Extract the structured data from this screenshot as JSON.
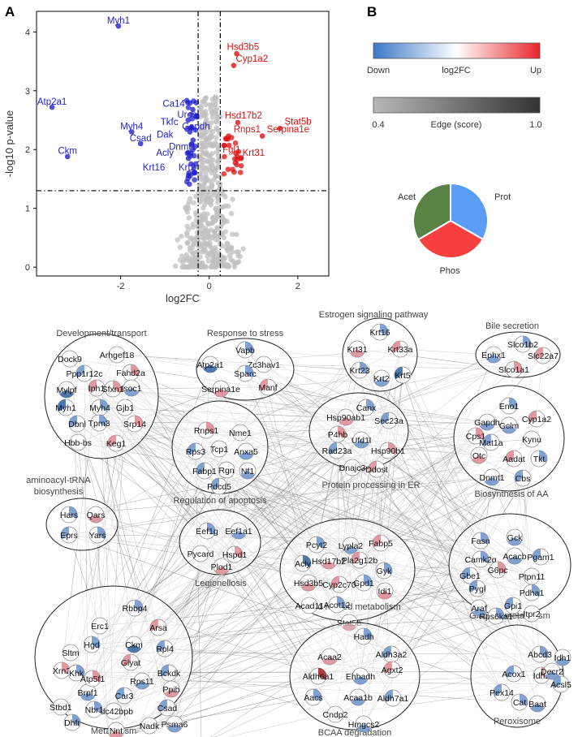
{
  "panel_a": {
    "letter": "A",
    "xlabel": "log2FC",
    "ylabel": "-log10 p-value",
    "x_ticks": [
      -2,
      0,
      2
    ],
    "y_ticks": [
      0,
      1,
      2,
      3,
      4
    ],
    "xlim": [
      -3.9,
      2.7
    ],
    "ylim": [
      -0.15,
      4.35
    ],
    "fc_threshold": 0.25,
    "p_threshold": 1.3,
    "down_color": "#2222cc",
    "up_color": "#dd1111",
    "bg_color": "#c0c0c0",
    "labels_down": [
      {
        "text": "Myh1",
        "x": -2.05,
        "y": 4.2
      },
      {
        "text": "Atp2a1",
        "x": -3.55,
        "y": 2.82
      },
      {
        "text": "Ckm",
        "x": -3.2,
        "y": 1.98
      },
      {
        "text": "Ca14",
        "x": -0.8,
        "y": 2.78
      },
      {
        "text": "Uros",
        "x": -0.5,
        "y": 2.6
      },
      {
        "text": "Tkfc",
        "x": -0.9,
        "y": 2.47
      },
      {
        "text": "Gapdh",
        "x": -0.3,
        "y": 2.4
      },
      {
        "text": "Myh4",
        "x": -1.75,
        "y": 2.4
      },
      {
        "text": "Dak",
        "x": -1.0,
        "y": 2.26
      },
      {
        "text": "Csad",
        "x": -1.55,
        "y": 2.2
      },
      {
        "text": "Dnmt1",
        "x": -0.6,
        "y": 2.05
      },
      {
        "text": "Acly",
        "x": -1.0,
        "y": 1.95
      },
      {
        "text": "Krt16",
        "x": -1.25,
        "y": 1.7
      },
      {
        "text": "Krt2",
        "x": -0.5,
        "y": 1.7
      }
    ],
    "labels_up": [
      {
        "text": "Hsd3b5",
        "x": 0.4,
        "y": 3.75
      },
      {
        "text": "Cyp1a2",
        "x": 0.6,
        "y": 3.55
      },
      {
        "text": "Hsd17b2",
        "x": 0.35,
        "y": 2.58
      },
      {
        "text": "Stat5b",
        "x": 1.7,
        "y": 2.48
      },
      {
        "text": "Rnps1",
        "x": 0.55,
        "y": 2.35
      },
      {
        "text": "Serpina1e",
        "x": 1.3,
        "y": 2.35
      },
      {
        "text": "Fgl1",
        "x": 0.3,
        "y": 2.0
      },
      {
        "text": "Krt31",
        "x": 0.75,
        "y": 1.95
      }
    ]
  },
  "panel_b": {
    "letter": "B",
    "colorbar1": {
      "left": "Down",
      "mid": "log2FC",
      "right": "Up",
      "low_color": "#3b78c8",
      "mid_color": "#ffffff",
      "high_color": "#e8252c"
    },
    "colorbar2": {
      "left": "0.4",
      "mid": "Edge (score)",
      "right": "1.0",
      "low_color": "#b8b8b8",
      "high_color": "#333333"
    },
    "pie": [
      {
        "label": "Prot",
        "value": 33.3,
        "color": "#5b9cf5"
      },
      {
        "label": "Phos",
        "value": 33.3,
        "color": "#f5403f"
      },
      {
        "label": "Acet",
        "value": 33.4,
        "color": "#5a8244"
      }
    ]
  },
  "network": {
    "modules": [
      {
        "title": "Development/transport",
        "nodes": [
          "Dock9",
          "Arhgef18",
          "Ppp1r12c",
          "Fahd2a",
          "Mylpf",
          "Iph1",
          "Sfxn1",
          "Isoc1",
          "Myh1",
          "Myh4",
          "Gjb1",
          "Dbnl",
          "Tpm3",
          "Hbb-bs",
          "Keg1",
          "Srp14"
        ]
      },
      {
        "title": "Response to stress",
        "nodes": [
          "Vapb",
          "Atp2a1",
          "Zc3hav1",
          "Sparc",
          "Serpina1e",
          "Manf"
        ]
      },
      {
        "title": "Estrogen signaling pathway",
        "nodes": [
          "Krt16",
          "Krt31",
          "Krt33a",
          "Krt23",
          "Krt2",
          "Krt5"
        ]
      },
      {
        "title": "Bile secretion",
        "nodes": [
          "Slco1b2",
          "Ephx1",
          "Slc22a7",
          "Slco1a1"
        ]
      },
      {
        "title": "Regulation of apoptosis",
        "nodes": [
          "Rnps1",
          "Nme1",
          "Rps3",
          "Tcp1",
          "Anxa5",
          "Fabp1",
          "Rgn",
          "Nf1",
          "Pdcd5"
        ]
      },
      {
        "title": "Protein processing in ER",
        "nodes": [
          "Canx",
          "Hsp90ab1",
          "Sec23a",
          "P4hb",
          "Ufd1l",
          "Rad23a",
          "Hsp90b1",
          "Dnajc3",
          "Ddost"
        ]
      },
      {
        "title": "Biosynthesis of AA",
        "nodes": [
          "Eno1",
          "Gapdh",
          "Cyp1a2",
          "Cps1",
          "Gclm",
          "Mat1a",
          "Kynu",
          "Otc",
          "Aadat",
          "Tkt",
          "Dnmt1",
          "Cbs"
        ]
      },
      {
        "title": "aminoacyl-tRNA biosynthesis",
        "nodes": [
          "Hars",
          "Qars",
          "Eprs",
          "Yars"
        ]
      },
      {
        "title": "Legionellosis",
        "nodes": [
          "Eef1g",
          "Eef1a1",
          "Pycard",
          "Hspd1",
          "Plod1"
        ]
      },
      {
        "title": "Lipid related metabolism",
        "nodes": [
          "Pcyt2",
          "Lypla2",
          "Fabp5",
          "Acly",
          "Hsd17b2",
          "Pla2g12b",
          "Gyk",
          "Hsd3b5",
          "Cyp2c70",
          "Gpd1",
          "Idi1",
          "Acad11",
          "Acot12",
          "Stat5b"
        ]
      },
      {
        "title": "Glucose metabolism",
        "nodes": [
          "Fasn",
          "Gck",
          "Pgam1",
          "Camk2g",
          "Acacb",
          "Gbe1",
          "G6pc",
          "Ptpn11",
          "Pygl",
          "Pdha1",
          "Araf",
          "Gpi1",
          "Rps6ka1",
          "Itpr2"
        ]
      },
      {
        "title": "Metabolism",
        "nodes": [
          "Rbbp4",
          "Erc1",
          "Arsa",
          "Hgd",
          "Ckm",
          "Rpl4",
          "Xrn2",
          "Sltm",
          "Glyat",
          "Khk",
          "Brpf1",
          "Car3",
          "Atp5f1",
          "Rps11",
          "Bckdk",
          "Cdc42bpb",
          "Ppib",
          "Stbd1",
          "Nbr1",
          "Nnt",
          "Csad",
          "Dhfr",
          "Dak",
          "Pcbd1",
          "Nadk",
          "Psma6",
          "Me1"
        ]
      },
      {
        "title": "BCAA degradation",
        "nodes": [
          "Hadh",
          "Acaa2",
          "Aldh3a2",
          "Aldh6a1",
          "Ehhadh",
          "Agxt2",
          "Aacs",
          "Acaa1b",
          "Aldh7a1",
          "Cndp2",
          "Hmgcs2"
        ]
      },
      {
        "title": "Peroxisome",
        "nodes": [
          "Abcd3",
          "Idh1",
          "Acox1",
          "Idh2",
          "Decr2",
          "Pex14",
          "Cat",
          "Baat",
          "Acsl5"
        ]
      }
    ]
  }
}
